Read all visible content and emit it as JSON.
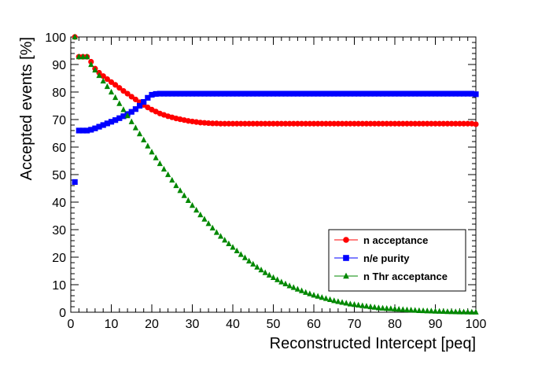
{
  "chart_data": {
    "type": "scatter",
    "title": "",
    "xlabel": "Reconstructed Intercept [peq]",
    "ylabel": "Accepted events [%]",
    "xlim": [
      0,
      100
    ],
    "ylim": [
      0,
      100
    ],
    "x_ticks": [
      0,
      10,
      20,
      30,
      40,
      50,
      60,
      70,
      80,
      90,
      100
    ],
    "y_ticks": [
      0,
      10,
      20,
      30,
      40,
      50,
      60,
      70,
      80,
      90,
      100
    ],
    "grid": false,
    "legend_position": "lower-right",
    "series": [
      {
        "name": "n acceptance",
        "color": "#ff0000",
        "marker": "circle",
        "x": [
          1,
          2,
          3,
          4,
          5,
          6,
          7,
          8,
          9,
          10,
          11,
          12,
          13,
          14,
          15,
          16,
          17,
          18,
          19,
          20,
          21,
          22,
          23,
          24,
          25,
          26,
          27,
          28,
          29,
          30,
          31,
          32,
          33,
          34,
          35,
          36,
          37,
          38,
          39,
          40,
          41,
          42,
          43,
          44,
          45,
          46,
          47,
          48,
          49,
          50,
          51,
          52,
          53,
          54,
          55,
          56,
          57,
          58,
          59,
          60,
          61,
          62,
          63,
          64,
          65,
          66,
          67,
          68,
          69,
          70,
          71,
          72,
          73,
          74,
          75,
          76,
          77,
          78,
          79,
          80,
          81,
          82,
          83,
          84,
          85,
          86,
          87,
          88,
          89,
          90,
          91,
          92,
          93,
          94,
          95,
          96,
          97,
          98,
          99,
          100
        ],
        "y": [
          100,
          92.8,
          92.8,
          92.8,
          91,
          88.5,
          87,
          85.8,
          84.7,
          83.6,
          82.6,
          81.5,
          80.4,
          79.4,
          78.3,
          77.3,
          76.3,
          75.3,
          74.4,
          73.6,
          72.9,
          72.2,
          71.7,
          71.2,
          70.8,
          70.4,
          70.1,
          69.8,
          69.5,
          69.3,
          69.1,
          68.9,
          68.8,
          68.7,
          68.6,
          68.6,
          68.5,
          68.5,
          68.5,
          68.5,
          68.5,
          68.5,
          68.5,
          68.5,
          68.5,
          68.5,
          68.5,
          68.5,
          68.5,
          68.5,
          68.5,
          68.5,
          68.5,
          68.5,
          68.5,
          68.5,
          68.5,
          68.5,
          68.5,
          68.5,
          68.5,
          68.5,
          68.5,
          68.5,
          68.5,
          68.5,
          68.5,
          68.5,
          68.5,
          68.5,
          68.5,
          68.5,
          68.5,
          68.5,
          68.5,
          68.5,
          68.5,
          68.5,
          68.5,
          68.5,
          68.5,
          68.5,
          68.5,
          68.5,
          68.5,
          68.5,
          68.5,
          68.5,
          68.5,
          68.5,
          68.5,
          68.5,
          68.5,
          68.5,
          68.5,
          68.5,
          68.5,
          68.5,
          68.5,
          68.3
        ]
      },
      {
        "name": "n/e purity",
        "color": "#0000ff",
        "marker": "square",
        "x": [
          1,
          2,
          3,
          4,
          5,
          6,
          7,
          8,
          9,
          10,
          11,
          12,
          13,
          14,
          15,
          16,
          17,
          18,
          19,
          20,
          21,
          22,
          23,
          24,
          25,
          26,
          27,
          28,
          29,
          30,
          31,
          32,
          33,
          34,
          35,
          36,
          37,
          38,
          39,
          40,
          41,
          42,
          43,
          44,
          45,
          46,
          47,
          48,
          49,
          50,
          51,
          52,
          53,
          54,
          55,
          56,
          57,
          58,
          59,
          60,
          61,
          62,
          63,
          64,
          65,
          66,
          67,
          68,
          69,
          70,
          71,
          72,
          73,
          74,
          75,
          76,
          77,
          78,
          79,
          80,
          81,
          82,
          83,
          84,
          85,
          86,
          87,
          88,
          89,
          90,
          91,
          92,
          93,
          94,
          95,
          96,
          97,
          98,
          99,
          100
        ],
        "y": [
          47.3,
          66,
          66,
          66,
          66.3,
          66.8,
          67.4,
          68,
          68.6,
          69.2,
          69.8,
          70.5,
          71.2,
          72,
          72.8,
          73.8,
          75,
          76.4,
          77.9,
          79,
          79.3,
          79.4,
          79.4,
          79.4,
          79.4,
          79.4,
          79.4,
          79.4,
          79.4,
          79.4,
          79.4,
          79.4,
          79.4,
          79.4,
          79.4,
          79.4,
          79.4,
          79.4,
          79.4,
          79.4,
          79.4,
          79.4,
          79.4,
          79.4,
          79.4,
          79.4,
          79.4,
          79.4,
          79.4,
          79.4,
          79.4,
          79.4,
          79.4,
          79.4,
          79.4,
          79.4,
          79.4,
          79.4,
          79.4,
          79.4,
          79.4,
          79.4,
          79.4,
          79.4,
          79.4,
          79.4,
          79.4,
          79.4,
          79.4,
          79.4,
          79.4,
          79.4,
          79.4,
          79.4,
          79.4,
          79.4,
          79.4,
          79.4,
          79.4,
          79.4,
          79.4,
          79.4,
          79.4,
          79.4,
          79.4,
          79.4,
          79.4,
          79.4,
          79.4,
          79.4,
          79.4,
          79.4,
          79.4,
          79.4,
          79.4,
          79.4,
          79.4,
          79.4,
          79.4,
          79.2
        ]
      },
      {
        "name": "n Thr acceptance",
        "color": "#008800",
        "marker": "triangle",
        "x": [
          1,
          2,
          3,
          4,
          5,
          6,
          7,
          8,
          9,
          10,
          11,
          12,
          13,
          14,
          15,
          16,
          17,
          18,
          19,
          20,
          21,
          22,
          23,
          24,
          25,
          26,
          27,
          28,
          29,
          30,
          31,
          32,
          33,
          34,
          35,
          36,
          37,
          38,
          39,
          40,
          41,
          42,
          43,
          44,
          45,
          46,
          47,
          48,
          49,
          50,
          51,
          52,
          53,
          54,
          55,
          56,
          57,
          58,
          59,
          60,
          61,
          62,
          63,
          64,
          65,
          66,
          67,
          68,
          69,
          70,
          71,
          72,
          73,
          74,
          75,
          76,
          77,
          78,
          79,
          80,
          81,
          82,
          83,
          84,
          85,
          86,
          87,
          88,
          89,
          90,
          91,
          92,
          93,
          94,
          95,
          96,
          97,
          98,
          99,
          100
        ],
        "y": [
          100,
          92.8,
          92.8,
          92.8,
          90,
          88,
          86,
          84,
          82,
          80,
          78,
          75.8,
          73.6,
          71.4,
          69.2,
          67,
          64.8,
          62.6,
          60.4,
          58.2,
          56.1,
          54,
          52,
          50,
          48,
          46,
          44.2,
          42.4,
          40.6,
          38.8,
          37.1,
          35.4,
          33.8,
          32.2,
          30.6,
          29,
          27.6,
          26.2,
          24.9,
          23.6,
          22.3,
          21,
          19.8,
          18.6,
          17.5,
          16.4,
          15.4,
          14.4,
          13.5,
          12.6,
          11.8,
          11,
          10.3,
          9.6,
          9,
          8.4,
          7.8,
          7.2,
          6.7,
          6.2,
          5.8,
          5.4,
          5,
          4.6,
          4.2,
          3.9,
          3.6,
          3.3,
          3,
          2.8,
          2.6,
          2.4,
          2.2,
          2,
          1.8,
          1.6,
          1.5,
          1.4,
          1.3,
          1.2,
          1.1,
          1,
          0.9,
          0.8,
          0.7,
          0.6,
          0.55,
          0.5,
          0.45,
          0.4,
          0.35,
          0.3,
          0.25,
          0.2,
          0.18,
          0.15,
          0.12,
          0.1,
          0.08,
          0.05
        ]
      }
    ]
  }
}
